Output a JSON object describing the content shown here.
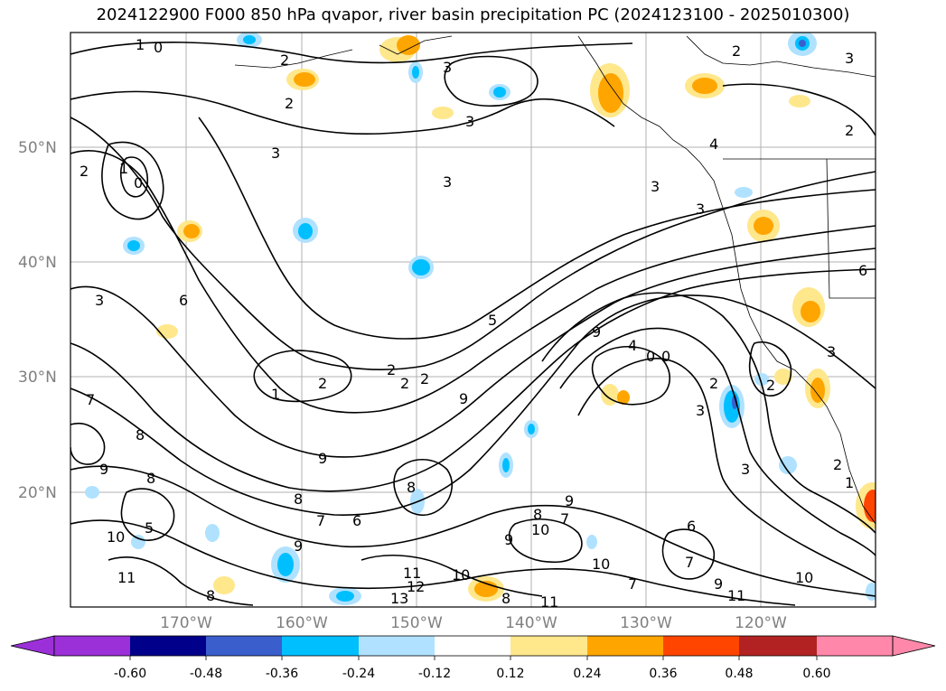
{
  "title": "2024122900 F000 850 hPa qvapor, river basin precipitation PC (2024123100 - 2025010300)",
  "lat_labels": [
    "50°N",
    "40°N",
    "30°N",
    "20°N"
  ],
  "lon_labels": [
    "170°W",
    "160°W",
    "150°W",
    "140°W",
    "130°W",
    "120°W"
  ],
  "colorbar": {
    "ticks": [
      "-0.60",
      "-0.48",
      "-0.36",
      "-0.24",
      "-0.12",
      "0.12",
      "0.24",
      "0.36",
      "0.48",
      "0.60"
    ],
    "under_color": "#9b30d9",
    "over_color": "#ff88aa",
    "colors": [
      "#9b30d9",
      "#00008b",
      "#3a5fcd",
      "#00bfff",
      "#b0e2ff",
      "#ffffff",
      "#ffe78c",
      "#ffa500",
      "#ff4500",
      "#b22222",
      "#ff88aa"
    ]
  },
  "contour_labels": [
    "0",
    "1",
    "2",
    "3",
    "4",
    "5",
    "6",
    "7",
    "8",
    "9",
    "10",
    "11",
    "12",
    "13"
  ],
  "map_labels": [
    {
      "t": "0"
    },
    {
      "t": "1"
    },
    {
      "t": "2"
    },
    {
      "t": "3"
    },
    {
      "t": "2"
    },
    {
      "t": "3"
    },
    {
      "t": "3"
    },
    {
      "t": "3"
    },
    {
      "t": "3"
    },
    {
      "t": "2"
    },
    {
      "t": "3"
    },
    {
      "t": "2"
    },
    {
      "t": "4"
    },
    {
      "t": "3"
    },
    {
      "t": "2"
    },
    {
      "t": "1"
    },
    {
      "t": "0"
    },
    {
      "t": "3"
    },
    {
      "t": "5"
    },
    {
      "t": "6"
    },
    {
      "t": "2"
    },
    {
      "t": "2"
    },
    {
      "t": "1"
    },
    {
      "t": "2"
    },
    {
      "t": "2"
    },
    {
      "t": "9"
    },
    {
      "t": "9"
    },
    {
      "t": "4"
    },
    {
      "t": "0"
    },
    {
      "t": "0"
    },
    {
      "t": "2"
    },
    {
      "t": "3"
    },
    {
      "t": "2"
    },
    {
      "t": "3"
    },
    {
      "t": "7"
    },
    {
      "t": "8"
    },
    {
      "t": "9"
    },
    {
      "t": "8"
    },
    {
      "t": "9"
    },
    {
      "t": "10"
    },
    {
      "t": "11"
    },
    {
      "t": "8"
    },
    {
      "t": "7"
    },
    {
      "t": "6"
    },
    {
      "t": "9"
    },
    {
      "t": "8"
    },
    {
      "t": "11"
    },
    {
      "t": "12"
    },
    {
      "t": "13"
    },
    {
      "t": "10"
    },
    {
      "t": "8"
    },
    {
      "t": "9"
    },
    {
      "t": "10"
    },
    {
      "t": "10"
    },
    {
      "t": "7"
    },
    {
      "t": "9"
    },
    {
      "t": "11"
    },
    {
      "t": "10"
    },
    {
      "t": "6"
    },
    {
      "t": "7"
    },
    {
      "t": "1"
    },
    {
      "t": "2"
    },
    {
      "t": "3"
    },
    {
      "t": "8"
    },
    {
      "t": "9"
    },
    {
      "t": "7"
    },
    {
      "t": "11"
    },
    {
      "t": "8"
    },
    {
      "t": "5"
    },
    {
      "t": "6"
    }
  ]
}
